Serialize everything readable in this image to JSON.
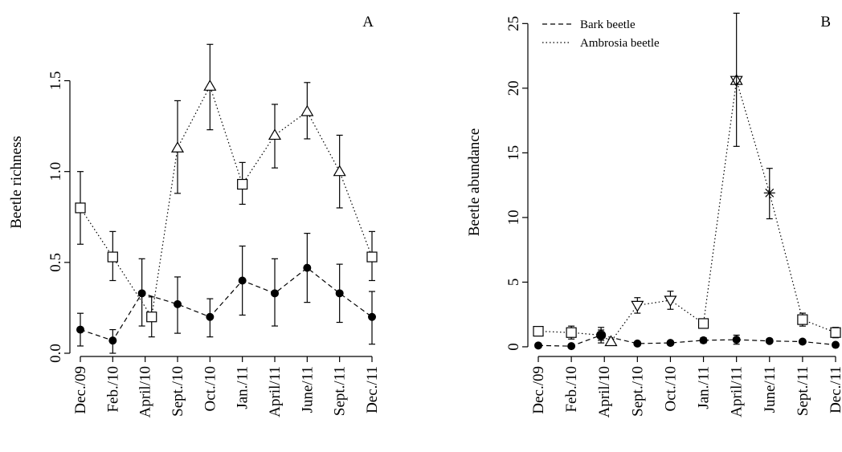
{
  "chart_data": [
    {
      "type": "line",
      "panel_label": "A",
      "xlabel": "",
      "ylabel": "Beetle richness",
      "ylim": [
        0,
        1.9
      ],
      "yticks": [
        "0.0",
        "0.5",
        "1.0",
        "1.5"
      ],
      "yticks_values": [
        0,
        0.5,
        1.0,
        1.5
      ],
      "categories": [
        "Dec./09",
        "Feb./10",
        "April/10",
        "Sept./10",
        "Oct./10",
        "Jan./11",
        "April/11",
        "June/11",
        "Sept./11",
        "Dec./11"
      ],
      "series": [
        {
          "line_style": "dashed",
          "marker": "filled-circle",
          "points": [
            {
              "x": 0.0,
              "y": 0.13,
              "lo": 0.04,
              "hi": 0.22
            },
            {
              "x": 1.0,
              "y": 0.07,
              "lo": 0.0,
              "hi": 0.13
            },
            {
              "x": 1.9,
              "y": 0.33,
              "lo": 0.15,
              "hi": 0.52
            },
            {
              "x": 3.0,
              "y": 0.27,
              "lo": 0.11,
              "hi": 0.42
            },
            {
              "x": 4.0,
              "y": 0.2,
              "lo": 0.09,
              "hi": 0.3
            },
            {
              "x": 5.0,
              "y": 0.4,
              "lo": 0.21,
              "hi": 0.59
            },
            {
              "x": 6.0,
              "y": 0.33,
              "lo": 0.15,
              "hi": 0.52
            },
            {
              "x": 7.0,
              "y": 0.47,
              "lo": 0.28,
              "hi": 0.66
            },
            {
              "x": 8.0,
              "y": 0.33,
              "lo": 0.17,
              "hi": 0.49
            },
            {
              "x": 9.0,
              "y": 0.2,
              "lo": 0.05,
              "hi": 0.34
            }
          ]
        },
        {
          "line_style": "dotted",
          "marker": "mixed",
          "points": [
            {
              "x": 0.0,
              "y": 0.8,
              "lo": 0.6,
              "hi": 1.0,
              "marker": "square"
            },
            {
              "x": 1.0,
              "y": 0.53,
              "lo": 0.4,
              "hi": 0.67,
              "marker": "square"
            },
            {
              "x": 2.2,
              "y": 0.2,
              "lo": 0.09,
              "hi": 0.31,
              "marker": "square"
            },
            {
              "x": 3.0,
              "y": 1.13,
              "lo": 0.88,
              "hi": 1.39,
              "marker": "triangle-up"
            },
            {
              "x": 4.0,
              "y": 1.47,
              "lo": 1.23,
              "hi": 1.7,
              "marker": "triangle-up"
            },
            {
              "x": 5.0,
              "y": 0.93,
              "lo": 0.82,
              "hi": 1.05,
              "marker": "square"
            },
            {
              "x": 6.0,
              "y": 1.2,
              "lo": 1.02,
              "hi": 1.37,
              "marker": "triangle-up"
            },
            {
              "x": 7.0,
              "y": 1.33,
              "lo": 1.18,
              "hi": 1.49,
              "marker": "triangle-up"
            },
            {
              "x": 8.0,
              "y": 1.0,
              "lo": 0.8,
              "hi": 1.2,
              "marker": "triangle-up"
            },
            {
              "x": 9.0,
              "y": 0.53,
              "lo": 0.4,
              "hi": 0.67,
              "marker": "square"
            }
          ]
        }
      ]
    },
    {
      "type": "line",
      "panel_label": "B",
      "xlabel": "",
      "ylabel": "Beetle abundance",
      "ylim": [
        -0.5,
        26.2
      ],
      "yticks": [
        "0",
        "5",
        "10",
        "15",
        "20",
        "25"
      ],
      "yticks_values": [
        0,
        5,
        10,
        15,
        20,
        25
      ],
      "categories": [
        "Dec./09",
        "Feb./10",
        "April/10",
        "Sept./10",
        "Oct./10",
        "Jan./11",
        "April/11",
        "June/11",
        "Sept./11",
        "Dec./11"
      ],
      "legend": {
        "position": "top-left",
        "entries": [
          {
            "label": "Bark beetle",
            "line_style": "dashed"
          },
          {
            "label": "Ambrosia beetle",
            "line_style": "dotted"
          }
        ]
      },
      "series": [
        {
          "line_style": "dashed",
          "marker": "filled-circle",
          "points": [
            {
              "x": 0.0,
              "y": 0.1,
              "lo": 0.05,
              "hi": 0.15
            },
            {
              "x": 1.0,
              "y": 0.05,
              "lo": 0.0,
              "hi": 0.1
            },
            {
              "x": 1.9,
              "y": 0.9,
              "lo": 0.5,
              "hi": 1.3
            },
            {
              "x": 3.0,
              "y": 0.25,
              "lo": 0.15,
              "hi": 0.35
            },
            {
              "x": 4.0,
              "y": 0.3,
              "lo": 0.2,
              "hi": 0.4
            },
            {
              "x": 5.0,
              "y": 0.5,
              "lo": 0.3,
              "hi": 0.7
            },
            {
              "x": 6.0,
              "y": 0.55,
              "lo": 0.2,
              "hi": 0.9
            },
            {
              "x": 7.0,
              "y": 0.45,
              "lo": 0.3,
              "hi": 0.6
            },
            {
              "x": 8.0,
              "y": 0.4,
              "lo": 0.3,
              "hi": 0.5
            },
            {
              "x": 9.0,
              "y": 0.15,
              "lo": 0.05,
              "hi": 0.25
            }
          ]
        },
        {
          "line_style": "dotted",
          "marker": "mixed",
          "points": [
            {
              "x": 0.0,
              "y": 1.2,
              "lo": 1.0,
              "hi": 1.4,
              "marker": "square"
            },
            {
              "x": 1.0,
              "y": 1.1,
              "lo": 0.6,
              "hi": 1.6,
              "marker": "square"
            },
            {
              "x": 1.9,
              "y": 0.9,
              "lo": 0.3,
              "hi": 1.5,
              "marker": "circle"
            },
            {
              "x": 2.2,
              "y": 0.4,
              "lo": 0.2,
              "hi": 0.6,
              "marker": "triangle-up"
            },
            {
              "x": 3.0,
              "y": 3.2,
              "lo": 2.6,
              "hi": 3.8,
              "marker": "triangle-down"
            },
            {
              "x": 4.0,
              "y": 3.6,
              "lo": 2.9,
              "hi": 4.3,
              "marker": "triangle-down"
            },
            {
              "x": 5.0,
              "y": 1.8,
              "lo": 1.5,
              "hi": 2.1,
              "marker": "square"
            },
            {
              "x": 6.0,
              "y": 20.6,
              "lo": 15.5,
              "hi": 25.8,
              "marker": "star-of-david"
            },
            {
              "x": 7.0,
              "y": 11.9,
              "lo": 9.9,
              "hi": 13.8,
              "marker": "asterisk"
            },
            {
              "x": 8.0,
              "y": 2.1,
              "lo": 1.6,
              "hi": 2.6,
              "marker": "square"
            },
            {
              "x": 9.0,
              "y": 1.1,
              "lo": 0.7,
              "hi": 1.5,
              "marker": "square"
            }
          ]
        }
      ]
    }
  ]
}
